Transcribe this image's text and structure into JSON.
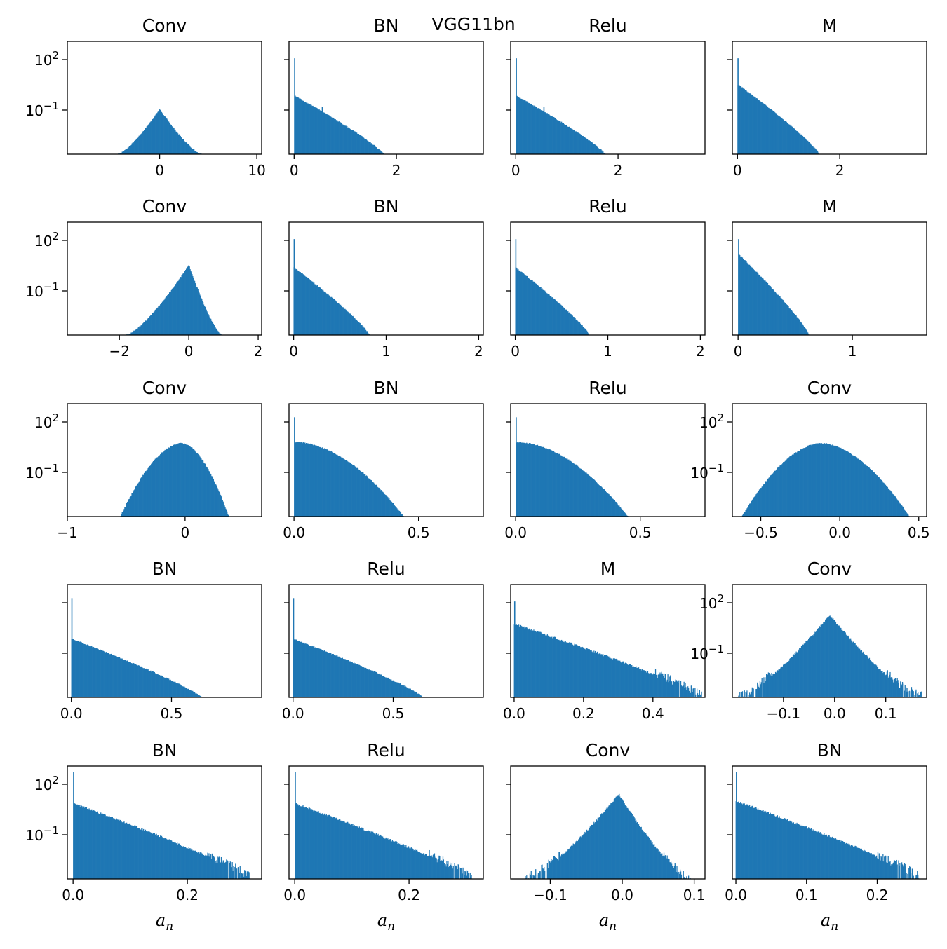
{
  "figure": {
    "title": "VGG11bn"
  },
  "style": {
    "bar_color": "#1f77b4",
    "frame_color": "#000000"
  },
  "chart_data": [
    {
      "type": "bar",
      "title": "Conv",
      "shape": "sym",
      "xlim": [
        -9.5,
        10.5
      ],
      "xticks": [
        0,
        10
      ],
      "center": 0,
      "width": 4.3,
      "peak": 0.4,
      "tail": 0.1,
      "yscale": "log",
      "yticks": [
        "10^2",
        "10^-1"
      ],
      "ytick_labels": true,
      "xlabel": ""
    },
    {
      "type": "bar",
      "title": "BN",
      "shape": "dec",
      "xlim": [
        -0.1,
        3.7
      ],
      "xticks": [
        0,
        2
      ],
      "end": 1.75,
      "peak": 0.52,
      "spikes": [
        [
          0.0,
          0.85
        ],
        [
          0.54,
          0.42
        ]
      ],
      "yscale": "log",
      "yticks": [
        "10^2",
        "10^-1"
      ],
      "ytick_labels": false,
      "xlabel": ""
    },
    {
      "type": "bar",
      "title": "Relu",
      "shape": "dec",
      "xlim": [
        -0.1,
        3.7
      ],
      "xticks": [
        0,
        2
      ],
      "end": 1.75,
      "peak": 0.52,
      "spikes": [
        [
          0.0,
          0.85
        ],
        [
          0.54,
          0.42
        ]
      ],
      "yscale": "log",
      "yticks": [
        "10^2",
        "10^-1"
      ],
      "ytick_labels": false,
      "xlabel": ""
    },
    {
      "type": "bar",
      "title": "M",
      "shape": "dec",
      "xlim": [
        -0.1,
        3.7
      ],
      "xticks": [
        0,
        2
      ],
      "end": 1.6,
      "peak": 0.62,
      "spikes": [
        [
          0.0,
          0.85
        ],
        [
          0.54,
          0.42
        ]
      ],
      "yscale": "log",
      "yticks": [
        "10^2",
        "10^-1"
      ],
      "ytick_labels": false,
      "xlabel": ""
    },
    {
      "type": "bar",
      "title": "Conv",
      "shape": "sym",
      "xlim": [
        -3.5,
        2.1
      ],
      "xticks": [
        -2,
        0,
        2
      ],
      "center": 0,
      "width": 1.75,
      "left": 1.8,
      "right": 0.95,
      "peak": 0.62,
      "tail": 0.1,
      "yscale": "log",
      "yticks": [
        "10^2",
        "10^-1"
      ],
      "ytick_labels": true,
      "xlabel": ""
    },
    {
      "type": "bar",
      "title": "BN",
      "shape": "dec",
      "xlim": [
        -0.05,
        2.05
      ],
      "xticks": [
        0,
        1,
        2
      ],
      "end": 0.82,
      "peak": 0.6,
      "spikes": [
        [
          0.0,
          0.85
        ]
      ],
      "yscale": "log",
      "yticks": [
        "10^2",
        "10^-1"
      ],
      "ytick_labels": false,
      "xlabel": ""
    },
    {
      "type": "bar",
      "title": "Relu",
      "shape": "dec",
      "xlim": [
        -0.05,
        2.05
      ],
      "xticks": [
        0,
        1,
        2
      ],
      "end": 0.8,
      "peak": 0.6,
      "spikes": [
        [
          0.0,
          0.85
        ]
      ],
      "yscale": "log",
      "yticks": [
        "10^2",
        "10^-1"
      ],
      "ytick_labels": false,
      "xlabel": ""
    },
    {
      "type": "bar",
      "title": "M",
      "shape": "dec",
      "xlim": [
        -0.05,
        1.65
      ],
      "xticks": [
        0,
        1
      ],
      "end": 0.62,
      "peak": 0.72,
      "spikes": [
        [
          0.0,
          0.85
        ]
      ],
      "yscale": "log",
      "yticks": [
        "10^2",
        "10^-1"
      ],
      "ytick_labels": false,
      "xlabel": ""
    },
    {
      "type": "bar",
      "title": "Conv",
      "shape": "dome",
      "xlim": [
        -1.0,
        0.65
      ],
      "xticks": [
        -1,
        0
      ],
      "center": -0.03,
      "left": 0.52,
      "right": 0.4,
      "peak": 0.65,
      "tail": 0.1,
      "yscale": "log",
      "yticks": [
        "10^2",
        "10^-1"
      ],
      "ytick_labels": true,
      "xlabel": ""
    },
    {
      "type": "bar",
      "title": "BN",
      "shape": "half",
      "xlim": [
        -0.02,
        0.76
      ],
      "xticks": [
        0.0,
        0.5
      ],
      "end": 0.44,
      "peak": 0.66,
      "spikes": [
        [
          0.0,
          0.88
        ]
      ],
      "yscale": "log",
      "yticks": [
        "10^2",
        "10^-1"
      ],
      "ytick_labels": false,
      "xlabel": ""
    },
    {
      "type": "bar",
      "title": "Relu",
      "shape": "half",
      "xlim": [
        -0.02,
        0.76
      ],
      "xticks": [
        0.0,
        0.5
      ],
      "end": 0.45,
      "peak": 0.66,
      "spikes": [
        [
          0.0,
          0.88
        ]
      ],
      "yscale": "log",
      "yticks": [
        "10^2",
        "10^-1"
      ],
      "ytick_labels": false,
      "xlabel": ""
    },
    {
      "type": "bar",
      "title": "Conv",
      "shape": "dome",
      "xlim": [
        -0.68,
        0.55
      ],
      "xticks": [
        -0.5,
        0.0,
        0.5
      ],
      "center": -0.12,
      "left": 0.5,
      "right": 0.56,
      "peak": 0.65,
      "tail": 0.1,
      "yscale": "log",
      "yticks": [
        "10^2",
        "10^-1"
      ],
      "ytick_labels": true,
      "xlabel": ""
    },
    {
      "type": "bar",
      "title": "BN",
      "shape": "dec",
      "xlim": [
        -0.02,
        0.95
      ],
      "xticks": [
        0.0,
        0.5
      ],
      "end": 0.65,
      "peak": 0.52,
      "spikes": [
        [
          0.0,
          0.88
        ]
      ],
      "yscale": "log",
      "yticks": [
        "10^2",
        "10^-1"
      ],
      "ytick_labels": false,
      "xlabel": ""
    },
    {
      "type": "bar",
      "title": "Relu",
      "shape": "dec",
      "xlim": [
        -0.02,
        0.95
      ],
      "xticks": [
        0.0,
        0.5
      ],
      "end": 0.65,
      "peak": 0.52,
      "spikes": [
        [
          0.0,
          0.88
        ]
      ],
      "yscale": "log",
      "yticks": [
        "10^2",
        "10^-1"
      ],
      "ytick_labels": false,
      "xlabel": ""
    },
    {
      "type": "bar",
      "title": "M",
      "shape": "dec",
      "xlim": [
        -0.01,
        0.55
      ],
      "xticks": [
        0.0,
        0.2,
        0.4
      ],
      "end": 0.54,
      "peak": 0.65,
      "noisy": true,
      "spikes": [
        [
          0.0,
          0.85
        ]
      ],
      "yscale": "log",
      "yticks": [
        "10^2",
        "10^-1"
      ],
      "ytick_labels": false,
      "xlabel": ""
    },
    {
      "type": "bar",
      "title": "Conv",
      "shape": "sym",
      "xlim": [
        -0.2,
        0.18
      ],
      "xticks": [
        -0.1,
        0.0,
        0.1
      ],
      "center": -0.01,
      "left": 0.18,
      "right": 0.18,
      "peak": 0.73,
      "tail": 0.02,
      "noisy": true,
      "yscale": "log",
      "yticks": [
        "10^2",
        "10^-1"
      ],
      "ytick_labels": true,
      "xlabel": ""
    },
    {
      "type": "bar",
      "title": "BN",
      "shape": "dec",
      "xlim": [
        -0.01,
        0.33
      ],
      "xticks": [
        0.0,
        0.2
      ],
      "end": 0.31,
      "peak": 0.67,
      "noisy": true,
      "spikes": [
        [
          0.0,
          0.95
        ]
      ],
      "yscale": "log",
      "yticks": [
        "10^2",
        "10^-1"
      ],
      "ytick_labels": true,
      "xlabel": "a_n"
    },
    {
      "type": "bar",
      "title": "Relu",
      "shape": "dec",
      "xlim": [
        -0.01,
        0.33
      ],
      "xticks": [
        0.0,
        0.2
      ],
      "end": 0.31,
      "peak": 0.67,
      "noisy": true,
      "spikes": [
        [
          0.0,
          0.95
        ]
      ],
      "yscale": "log",
      "yticks": [
        "10^2",
        "10^-1"
      ],
      "ytick_labels": false,
      "xlabel": "a_n"
    },
    {
      "type": "bar",
      "title": "Conv",
      "shape": "sym",
      "xlim": [
        -0.155,
        0.115
      ],
      "xticks": [
        -0.1,
        0.0,
        0.1
      ],
      "center": -0.005,
      "left": 0.13,
      "right": 0.1,
      "peak": 0.75,
      "tail": 0.02,
      "noisy": true,
      "yscale": "log",
      "yticks": [
        "10^2",
        "10^-1"
      ],
      "ytick_labels": false,
      "xlabel": "a_n"
    },
    {
      "type": "bar",
      "title": "BN",
      "shape": "dec",
      "xlim": [
        -0.005,
        0.27
      ],
      "xticks": [
        0.0,
        0.1,
        0.2
      ],
      "end": 0.26,
      "peak": 0.69,
      "noisy": true,
      "spikes": [
        [
          0.0,
          0.95
        ]
      ],
      "yscale": "log",
      "yticks": [
        "10^2",
        "10^-1"
      ],
      "ytick_labels": false,
      "xlabel": "a_n"
    }
  ]
}
